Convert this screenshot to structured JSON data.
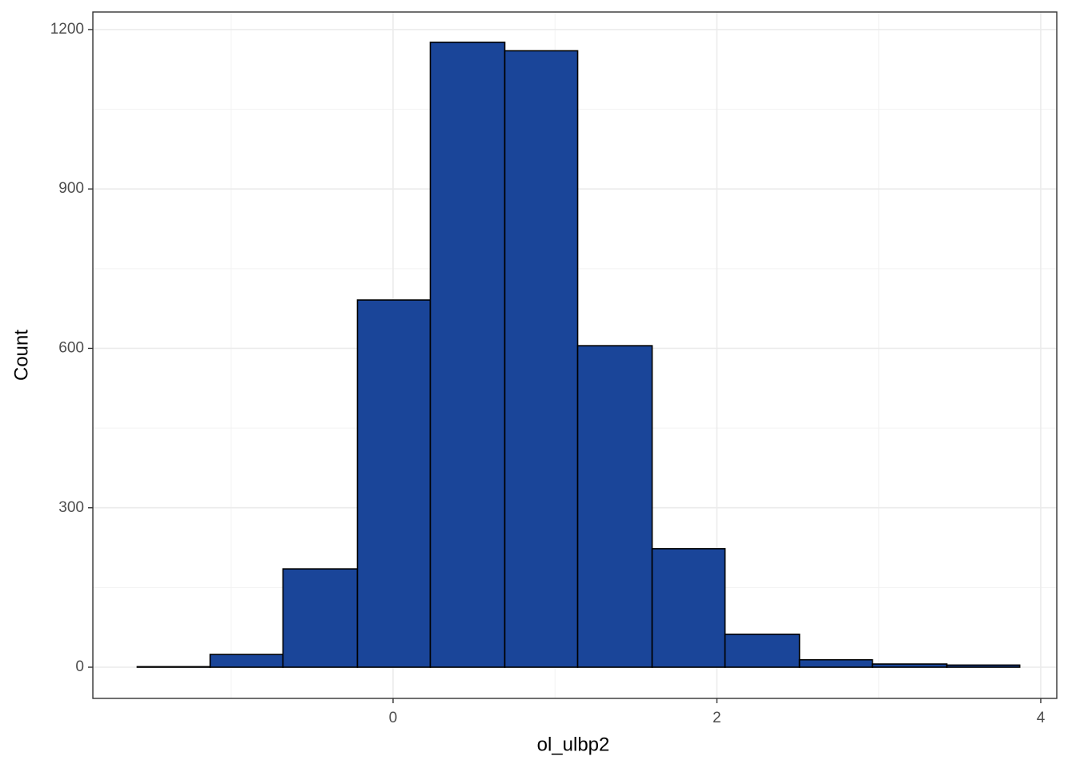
{
  "chart_data": {
    "type": "histogram",
    "x_label": "ol_ulbp2",
    "y_label": "Count",
    "bins": [
      -1.58,
      -1.13,
      -0.68,
      -0.22,
      0.23,
      0.69,
      1.14,
      1.6,
      2.05,
      2.51,
      2.96,
      3.42,
      3.87
    ],
    "values": [
      1,
      24,
      185,
      691,
      1176,
      1160,
      605,
      223,
      62,
      14,
      6,
      4
    ],
    "color": "#1a4599",
    "xlim": [
      -1.854,
      4.099
    ],
    "xticks": [
      0,
      2,
      4
    ],
    "ylim": [
      -58.7,
      1233
    ],
    "yticks": [
      0,
      300,
      600,
      900,
      1200
    ],
    "grid": true
  }
}
